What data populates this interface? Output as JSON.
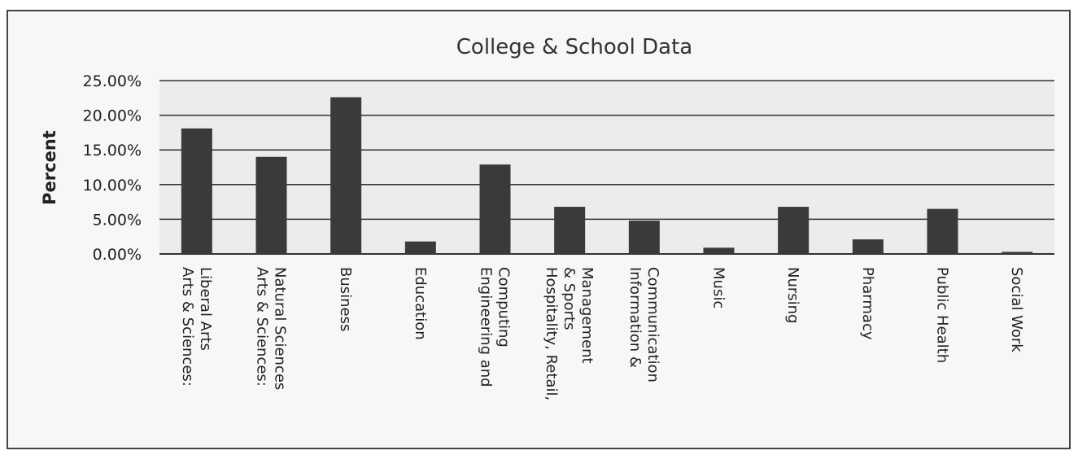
{
  "chart_data": {
    "type": "bar",
    "title": "College & School Data",
    "xlabel": "",
    "ylabel": "Percent",
    "ylim": [
      0,
      25
    ],
    "yticks": [
      "0.00%",
      "5.00%",
      "10.00%",
      "15.00%",
      "20.00%",
      "25.00%"
    ],
    "grid": true,
    "categories": [
      [
        "Arts & Sciences:",
        "Liberal Arts"
      ],
      [
        "Arts & Sciences:",
        "Natural Sciences"
      ],
      [
        "Business"
      ],
      [
        "Education"
      ],
      [
        "Engineering and",
        "Computing"
      ],
      [
        "Hospitality, Retail,",
        "& Sports",
        "Management"
      ],
      [
        "Information &",
        "Communication"
      ],
      [
        "Music"
      ],
      [
        "Nursing"
      ],
      [
        "Pharmacy"
      ],
      [
        "Public Health"
      ],
      [
        "Social Work"
      ]
    ],
    "values": [
      18.1,
      14.0,
      22.6,
      1.8,
      12.9,
      6.8,
      4.8,
      0.9,
      6.8,
      2.1,
      6.5,
      0.3
    ],
    "colors": {
      "bar": "#3a3a3a",
      "grid": "#333333",
      "plot_bg": "#ececec"
    }
  }
}
